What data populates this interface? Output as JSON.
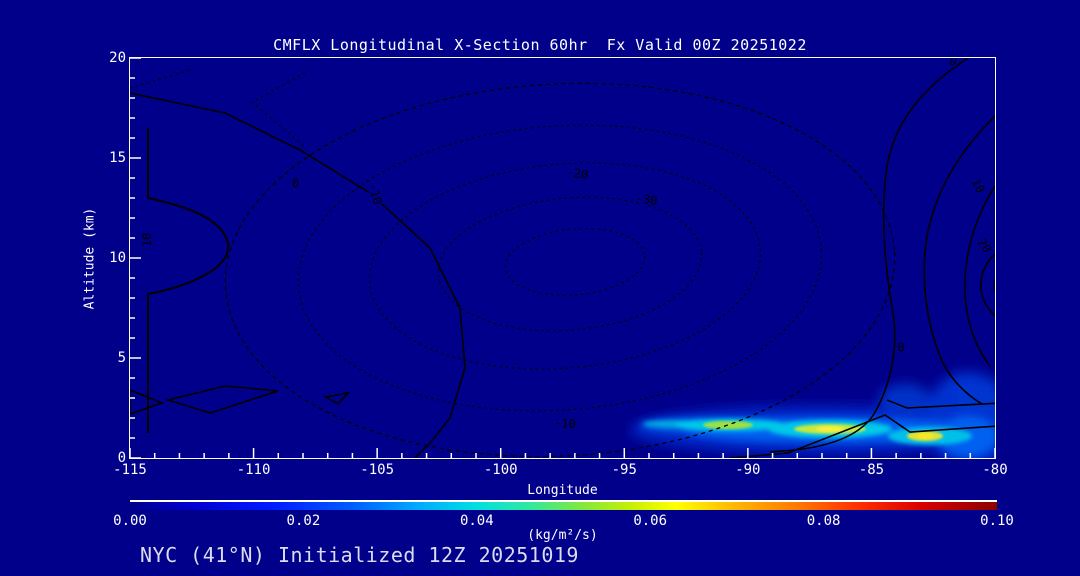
{
  "colors": {
    "background": "#00008B",
    "axis": "#FFFFFF",
    "contour_lines": "#000000",
    "title_text": "#FFFFFF",
    "footer_text": "#DCDCF0"
  },
  "header": {
    "title": "CMFLX Longitudinal X-Section 60hr  Fx Valid 00Z 20251022"
  },
  "footer": {
    "text": "NYC (41°N) Initialized 12Z 20251019"
  },
  "chart_data": {
    "type": "contour",
    "title": "CMFLX Longitudinal X-Section 60hr  Fx Valid 00Z 20251022",
    "xlabel": "Longitude",
    "ylabel": "Altitude (km)",
    "xlim": [
      -115,
      -80
    ],
    "ylim": [
      0,
      20
    ],
    "x_ticks": [
      -115,
      -110,
      -105,
      -100,
      -95,
      -90,
      -85,
      -80
    ],
    "x_minor_tick_step": 1,
    "y_ticks": [
      0,
      5,
      10,
      15,
      20
    ],
    "y_minor_tick_step": 1,
    "grid": false,
    "dashed_contours_represent": "negative values",
    "solid_contours_represent": "zero and positive values",
    "contour_line_labels": [
      {
        "value": "10",
        "lon": -114.3,
        "alt_km": 10.9,
        "rot": -90
      },
      {
        "value": "0",
        "lon": -108.3,
        "alt_km": 13.7,
        "rot": 0
      },
      {
        "value": "-10",
        "lon": -105.1,
        "alt_km": 13.2,
        "rot": 75
      },
      {
        "value": "-20",
        "lon": -96.9,
        "alt_km": 14.2,
        "rot": 8
      },
      {
        "value": "-30",
        "lon": -94.1,
        "alt_km": 12.9,
        "rot": 8
      },
      {
        "value": "-10",
        "lon": -97.4,
        "alt_km": 1.7,
        "rot": 5
      },
      {
        "value": "0",
        "lon": -81.7,
        "alt_km": 19.8,
        "rot": 25
      },
      {
        "value": "10",
        "lon": -80.7,
        "alt_km": 13.6,
        "rot": 65
      },
      {
        "value": "20",
        "lon": -80.45,
        "alt_km": 10.6,
        "rot": 55
      },
      {
        "value": "0",
        "lon": -83.8,
        "alt_km": 5.5,
        "rot": 0
      }
    ],
    "shading": {
      "description": "Near-surface convective mass flux plume between about -93 and -80 longitude below ~4 km; brightest (yellow-green ~0.05-0.06) cores near -91, -87 and -83; blue shading extends up the right edge",
      "units": "kg/m²/s",
      "max_value_approx": 0.06
    },
    "colorbar": {
      "label": "(kg/m²/s)",
      "tick_labels": [
        "0.00",
        "0.02",
        "0.04",
        "0.06",
        "0.08",
        "0.10"
      ],
      "min": 0.0,
      "max": 0.1,
      "gradient_stops": [
        {
          "pos": 0.0,
          "color": "#00008B"
        },
        {
          "pos": 0.07,
          "color": "#0000CD"
        },
        {
          "pos": 0.16,
          "color": "#0018FF"
        },
        {
          "pos": 0.26,
          "color": "#0060FF"
        },
        {
          "pos": 0.33,
          "color": "#00A8FF"
        },
        {
          "pos": 0.4,
          "color": "#00E0E0"
        },
        {
          "pos": 0.46,
          "color": "#30E8A0"
        },
        {
          "pos": 0.52,
          "color": "#80E840"
        },
        {
          "pos": 0.58,
          "color": "#C8F000"
        },
        {
          "pos": 0.63,
          "color": "#FFFF00"
        },
        {
          "pos": 0.7,
          "color": "#FFB400"
        },
        {
          "pos": 0.77,
          "color": "#FF7800"
        },
        {
          "pos": 0.84,
          "color": "#FF3000"
        },
        {
          "pos": 0.91,
          "color": "#DC0000"
        },
        {
          "pos": 1.0,
          "color": "#8B0000"
        }
      ]
    }
  }
}
